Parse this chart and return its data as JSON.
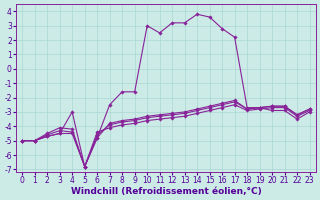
{
  "xlabel": "Windchill (Refroidissement éolien,°C)",
  "bg_color": "#cceae6",
  "line_color": "#882299",
  "grid_color": "#aad8d4",
  "x_values": [
    0,
    1,
    2,
    3,
    4,
    5,
    6,
    7,
    8,
    9,
    10,
    11,
    12,
    13,
    14,
    15,
    16,
    17,
    18,
    19,
    20,
    21,
    22,
    23
  ],
  "line1": [
    -5.0,
    -5.0,
    -4.7,
    -4.5,
    -3.0,
    -6.8,
    -4.8,
    -2.5,
    -1.6,
    -1.6,
    3.0,
    2.5,
    3.2,
    3.2,
    3.8,
    3.6,
    2.8,
    2.2,
    -2.7,
    -2.7,
    -2.9,
    -2.9,
    -3.5,
    -3.0
  ],
  "line2": [
    -5.0,
    -5.0,
    -4.7,
    -4.5,
    -4.5,
    -6.8,
    -4.8,
    -3.8,
    -3.6,
    -3.5,
    -3.3,
    -3.2,
    -3.1,
    -3.0,
    -2.8,
    -2.6,
    -2.4,
    -2.2,
    -2.8,
    -2.7,
    -2.6,
    -2.6,
    -3.2,
    -2.8
  ],
  "line3": [
    -5.0,
    -5.0,
    -4.6,
    -4.3,
    -4.4,
    -6.8,
    -4.6,
    -3.9,
    -3.7,
    -3.6,
    -3.4,
    -3.3,
    -3.2,
    -3.1,
    -2.9,
    -2.7,
    -2.5,
    -2.3,
    -2.8,
    -2.7,
    -2.6,
    -2.6,
    -3.2,
    -2.8
  ],
  "line4": [
    -5.0,
    -5.0,
    -4.5,
    -4.1,
    -4.2,
    -6.8,
    -4.4,
    -4.1,
    -3.9,
    -3.8,
    -3.6,
    -3.5,
    -3.4,
    -3.3,
    -3.1,
    -2.9,
    -2.7,
    -2.5,
    -2.9,
    -2.8,
    -2.7,
    -2.7,
    -3.3,
    -2.9
  ],
  "ylim": [
    -7.2,
    4.5
  ],
  "xlim": [
    -0.5,
    23.5
  ],
  "yticks": [
    -7,
    -6,
    -5,
    -4,
    -3,
    -2,
    -1,
    0,
    1,
    2,
    3,
    4
  ],
  "xticks": [
    0,
    1,
    2,
    3,
    4,
    5,
    6,
    7,
    8,
    9,
    10,
    11,
    12,
    13,
    14,
    15,
    16,
    17,
    18,
    19,
    20,
    21,
    22,
    23
  ],
  "marker": "D",
  "markersize": 1.8,
  "linewidth": 0.8,
  "xlabel_fontsize": 6.5,
  "tick_fontsize": 5.5,
  "label_color": "#550099"
}
